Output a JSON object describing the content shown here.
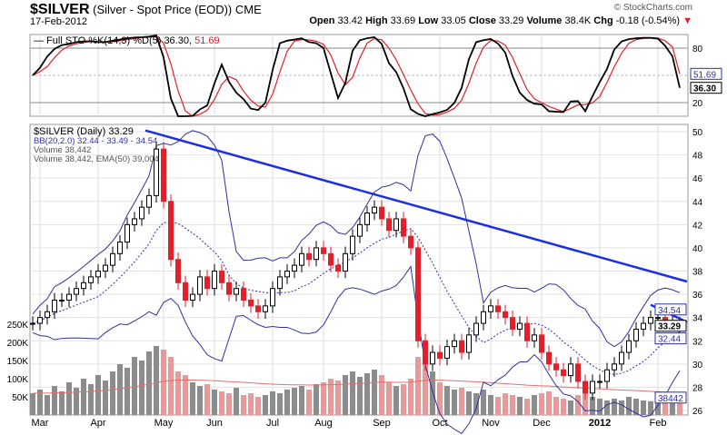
{
  "header": {
    "symbol": "$SILVER",
    "name": "(Silver - Spot Price (EOD))",
    "exchange": "CME",
    "date": "17-Feb-2012",
    "copyright": "© StockCharts.com",
    "open_label": "Open",
    "open": "33.42",
    "high_label": "High",
    "high": "33.69",
    "low_label": "Low",
    "low": "33.05",
    "close_label": "Close",
    "close": "33.29",
    "volume_label": "Volume",
    "volume": "38.4K",
    "chg_label": "Chg",
    "chg": "-0.18 (-0.54%)",
    "chg_arrow": "▼"
  },
  "colors": {
    "up": "#000000",
    "down": "#e0202a",
    "bb": "#3030a0",
    "trend": "#1a2ee8",
    "sto_k": "#000000",
    "sto_d": "#e0202a",
    "vol_up": "#8c8c8c",
    "vol_down": "#e79a9a",
    "ema": "#e07070"
  },
  "chart_data": [
    {
      "type": "line",
      "title": "Full STO %K(14,3) %D(5) 36.30, 51.69",
      "legend": "Full STO %K(14,3) %D(5) 36.30, ",
      "legend_d": "51.69",
      "ylim": [
        0,
        100
      ],
      "yticks": [
        "80",
        "20"
      ],
      "last_k": "36.30",
      "last_d": "51.69"
    },
    {
      "type": "candlestick",
      "title": "$SILVER (Daily) 33.29",
      "legend": [
        "$SILVER (Daily) 33.29",
        "BB(20,2.0) 32.44 - 33.49 - 34.54",
        "Volume 38,442",
        "Volume 38,442, EMA(50) 39,004"
      ],
      "ylim": [
        26,
        50.5
      ],
      "yticks": [
        "50",
        "48",
        "46",
        "44",
        "42",
        "40",
        "38",
        "36",
        "34",
        "32",
        "30",
        "28",
        "26"
      ],
      "vol_ticks": [
        "250K",
        "200K",
        "150K",
        "100K",
        "50K"
      ],
      "xticks": [
        "Mar",
        "Apr",
        "May",
        "Jun",
        "Jul",
        "Aug",
        "Sep",
        "Oct",
        "Nov",
        "Dec",
        "2012",
        "Feb"
      ],
      "xtick_index": [
        1,
        9,
        18,
        25,
        33,
        40,
        48,
        56,
        63,
        70,
        78,
        86
      ],
      "tags": {
        "bb_upper": "34.54",
        "close": "33.29",
        "bb_lower": "32.44",
        "volume": "38442"
      },
      "closes": [
        33.5,
        34,
        34.5,
        35.5,
        35.5,
        36,
        36.5,
        37,
        37.5,
        38,
        38.5,
        39.5,
        40.5,
        42,
        42.5,
        43.5,
        44.5,
        48.5,
        44,
        39,
        37,
        35.5,
        36,
        37.5,
        36.5,
        38,
        37,
        36,
        36.5,
        35.5,
        35,
        34.5,
        35,
        36.5,
        37.5,
        38,
        38.5,
        39.5,
        39,
        40,
        39.5,
        38.5,
        38,
        39.5,
        41,
        42,
        43,
        43.5,
        42.5,
        41.5,
        42.5,
        41,
        40,
        32,
        30,
        31,
        30.5,
        31.5,
        32,
        31,
        32.5,
        33.5,
        34.5,
        35,
        34.5,
        34,
        33,
        33.5,
        32,
        32.5,
        31,
        30,
        29.5,
        29,
        30,
        28.5,
        27.5,
        28.5,
        28.5,
        29.5,
        30,
        31,
        32,
        33,
        33.5,
        34,
        34,
        33.5,
        33.5,
        33.29
      ],
      "volumes": [
        60,
        70,
        55,
        80,
        65,
        90,
        75,
        100,
        85,
        110,
        95,
        120,
        140,
        130,
        160,
        150,
        175,
        190,
        180,
        160,
        120,
        110,
        90,
        80,
        85,
        70,
        65,
        60,
        75,
        55,
        60,
        50,
        55,
        65,
        60,
        70,
        75,
        80,
        70,
        85,
        90,
        100,
        95,
        110,
        120,
        105,
        115,
        125,
        110,
        90,
        80,
        85,
        100,
        160,
        150,
        120,
        90,
        80,
        70,
        75,
        65,
        60,
        70,
        55,
        50,
        60,
        55,
        50,
        45,
        55,
        60,
        65,
        50,
        45,
        40,
        55,
        60,
        50,
        45,
        40,
        45,
        40,
        50,
        45,
        40,
        38,
        42,
        40,
        45,
        38
      ],
      "trendlines": [
        {
          "from": [
            15.5,
            50.1
          ],
          "to": [
            90,
            37.1
          ]
        },
        {
          "from": [
            85,
            35.1
          ],
          "to": [
            90,
            33.6
          ]
        }
      ]
    }
  ]
}
